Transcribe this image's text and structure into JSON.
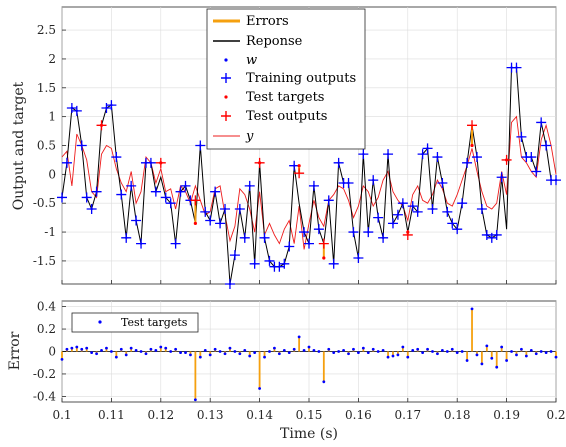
{
  "chart_data": [
    {
      "type": "line",
      "ylabel": "Output and target",
      "xlim": [
        0.1,
        0.2
      ],
      "ylim": [
        -1.9,
        2.9
      ],
      "yticks": [
        "-1.5",
        "-1",
        "-0.5",
        "0",
        "0.5",
        "1",
        "1.5",
        "2",
        "2.5"
      ],
      "grid": true,
      "legend_position": "top-center",
      "legend": [
        "Errors",
        "Reponse",
        "w",
        "Training outputs",
        "Test targets",
        "Test outputs",
        "y"
      ],
      "colors": {
        "errors": "#f5a00f",
        "response": "#000000",
        "w": "#0000ff",
        "training": "#0000ff",
        "test_targets": "#ff0000",
        "test_outputs": "#ff0000",
        "y": "#ee1c1c"
      },
      "x": [
        0.1,
        0.101,
        0.102,
        0.103,
        0.104,
        0.105,
        0.106,
        0.107,
        0.108,
        0.109,
        0.11,
        0.111,
        0.112,
        0.113,
        0.114,
        0.115,
        0.116,
        0.117,
        0.118,
        0.119,
        0.12,
        0.121,
        0.122,
        0.123,
        0.124,
        0.125,
        0.126,
        0.127,
        0.128,
        0.129,
        0.13,
        0.131,
        0.132,
        0.133,
        0.134,
        0.135,
        0.136,
        0.137,
        0.138,
        0.139,
        0.14,
        0.141,
        0.142,
        0.143,
        0.144,
        0.145,
        0.146,
        0.147,
        0.148,
        0.149,
        0.15,
        0.151,
        0.152,
        0.153,
        0.154,
        0.155,
        0.156,
        0.157,
        0.158,
        0.159,
        0.16,
        0.161,
        0.162,
        0.163,
        0.164,
        0.165,
        0.166,
        0.167,
        0.168,
        0.169,
        0.17,
        0.171,
        0.172,
        0.173,
        0.174,
        0.175,
        0.176,
        0.177,
        0.178,
        0.179,
        0.18,
        0.181,
        0.182,
        0.183,
        0.184,
        0.185,
        0.186,
        0.187,
        0.188,
        0.189,
        0.19,
        0.191,
        0.192,
        0.193,
        0.194,
        0.195,
        0.196,
        0.197,
        0.198,
        0.199,
        0.2
      ],
      "response": [
        -0.4,
        0.2,
        1.15,
        1.1,
        0.5,
        -0.4,
        -0.6,
        -0.3,
        0.85,
        1.15,
        1.2,
        0.3,
        -0.35,
        -1.1,
        -0.2,
        -0.8,
        -1.2,
        0.2,
        0.2,
        -0.3,
        -0.05,
        -0.4,
        -0.5,
        -1.2,
        -0.3,
        -0.2,
        -0.45,
        -0.85,
        0.5,
        -0.65,
        -0.8,
        -0.3,
        -0.85,
        -0.6,
        -1.9,
        -1.4,
        -0.6,
        -1.1,
        -0.2,
        -1.55,
        0.2,
        -1.1,
        -1.5,
        -1.6,
        -1.6,
        -1.55,
        -1.25,
        0.15,
        -0.5,
        -1.0,
        -1.2,
        -0.2,
        -0.95,
        -1.2,
        -0.45,
        -1.55,
        0.2,
        -0.15,
        -0.15,
        -1.0,
        -1.45,
        0.35,
        -1.0,
        -0.1,
        -0.75,
        -1.1,
        0.35,
        -0.85,
        -0.7,
        -0.5,
        -1.0,
        -0.55,
        -0.65,
        0.35,
        0.45,
        -0.6,
        0.3,
        -0.15,
        -0.65,
        -0.85,
        -0.95,
        -0.5,
        0.2,
        0.85,
        0.3,
        -0.6,
        -1.05,
        -1.1,
        -1.05,
        -0.05,
        -0.95,
        1.85,
        1.85,
        0.65,
        0.3,
        0.3,
        0.05,
        0.9,
        0.5,
        -0.1,
        -0.1
      ],
      "y": [
        0.3,
        0.4,
        -0.2,
        0.7,
        0.5,
        0.25,
        -0.3,
        -0.4,
        0.35,
        0.5,
        0.45,
        0.1,
        -0.15,
        -0.3,
        0.05,
        -0.5,
        -0.3,
        0.3,
        0.2,
        -0.15,
        0.1,
        -0.3,
        -0.25,
        -0.6,
        -0.2,
        -0.3,
        -0.5,
        -0.2,
        -0.45,
        -0.7,
        -0.65,
        -0.25,
        -0.2,
        -0.7,
        -1.15,
        -0.9,
        -0.25,
        -0.35,
        -0.6,
        -1.0,
        -0.3,
        -1.05,
        -0.85,
        -1.05,
        -1.2,
        -0.95,
        -0.8,
        -1.2,
        -0.55,
        -1.3,
        -0.85,
        -0.45,
        -0.75,
        -0.9,
        -0.45,
        -0.35,
        -0.2,
        -0.25,
        -0.45,
        -0.75,
        -0.55,
        -0.2,
        -0.3,
        -0.55,
        -0.4,
        -0.1,
        0.05,
        -0.3,
        -0.45,
        -0.55,
        -0.8,
        -0.35,
        -0.2,
        -0.45,
        -0.5,
        -0.35,
        -0.1,
        -0.25,
        -0.5,
        -0.55,
        -0.35,
        -0.1,
        0.15,
        0.45,
        0.05,
        -0.3,
        -0.55,
        -0.6,
        -0.5,
        0.05,
        -0.35,
        0.9,
        1.0,
        0.3,
        0.2,
        0.05,
        -0.05,
        0.6,
        0.85,
        0.5,
        0.0
      ],
      "test_x": [
        0.108,
        0.12,
        0.127,
        0.14,
        0.148,
        0.153,
        0.17,
        0.183,
        0.19
      ],
      "test_targets": [
        0.85,
        0.2,
        -0.85,
        0.2,
        0.15,
        -1.45,
        -1.0,
        0.5,
        0.25
      ],
      "test_outputs": [
        0.85,
        0.2,
        -0.45,
        0.2,
        0.02,
        -1.2,
        -1.05,
        0.85,
        0.25
      ]
    },
    {
      "type": "scatter",
      "xlabel": "Time (s)",
      "ylabel": "Error",
      "xlim": [
        0.1,
        0.2
      ],
      "ylim": [
        -0.45,
        0.45
      ],
      "xticks": [
        "0.1",
        "0.11",
        "0.12",
        "0.13",
        "0.14",
        "0.15",
        "0.16",
        "0.17",
        "0.18",
        "0.19",
        "0.2"
      ],
      "yticks": [
        "-0.4",
        "-0.2",
        "0",
        "0.2",
        "0.4"
      ],
      "legend": [
        "Test targets"
      ],
      "legend_position": "top-left",
      "error_values": [
        -0.07,
        0.02,
        0.03,
        0.04,
        0.02,
        0.03,
        -0.01,
        -0.02,
        0.01,
        0.03,
        0.0,
        -0.05,
        0.02,
        -0.03,
        0.03,
        0.01,
        0.0,
        -0.02,
        0.02,
        0.01,
        0.04,
        0.03,
        0.0,
        0.02,
        -0.01,
        -0.01,
        -0.03,
        -0.43,
        -0.05,
        0.01,
        -0.03,
        0.02,
        0.0,
        -0.02,
        0.03,
        0.0,
        -0.02,
        0.01,
        -0.04,
        -0.01,
        -0.33,
        -0.05,
        0.0,
        0.03,
        -0.02,
        0.01,
        -0.01,
        0.02,
        0.13,
        0.01,
        0.04,
        0.01,
        0.0,
        -0.27,
        0.02,
        -0.01,
        0.0,
        0.01,
        -0.02,
        0.02,
        -0.01,
        0.03,
        -0.01,
        0.02,
        0.0,
        0.01,
        -0.05,
        -0.04,
        -0.03,
        0.04,
        -0.05,
        0.01,
        0.02,
        -0.01,
        0.02,
        0.0,
        -0.02,
        0.01,
        0.0,
        0.02,
        -0.01,
        0.0,
        -0.08,
        0.38,
        -0.03,
        -0.11,
        0.05,
        -0.06,
        -0.14,
        0.04,
        -0.08,
        0.0,
        -0.03,
        0.02,
        -0.04,
        0.01,
        -0.02,
        0.0,
        -0.01,
        0.0,
        -0.05
      ]
    }
  ]
}
